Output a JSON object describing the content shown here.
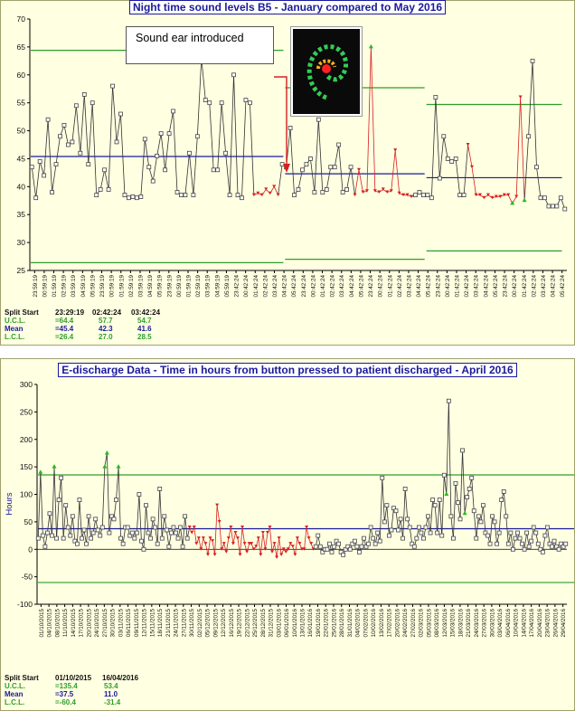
{
  "chart_data": [
    {
      "type": "line",
      "title": "Night time sound levels B5 - January compared to May 2016",
      "ylim": [
        25,
        70
      ],
      "yticks": [
        25,
        30,
        35,
        40,
        45,
        50,
        55,
        60,
        65,
        70
      ],
      "xticklabels": [
        "23:59:19",
        "00:59:19",
        "01:59:19",
        "02:59:19",
        "03:59:19",
        "04:59:19",
        "05:59:19",
        "23:59:19",
        "00:59:19",
        "01:59:19",
        "02:59:19",
        "03:59:19",
        "04:59:19",
        "05:59:19",
        "23:59:19",
        "00:59:19",
        "01:59:19",
        "02:59:19",
        "03:59:19",
        "04:59:19",
        "05:59:19",
        "23:42:24",
        "00:42:24",
        "01:42:24",
        "02:42:24",
        "03:42:24",
        "04:42:24",
        "05:42:24",
        "23:42:24",
        "00:42:24",
        "01:42:24",
        "02:42:24",
        "03:42:24",
        "04:42:24",
        "05:42:24",
        "23:42:24",
        "00:42:24",
        "01:42:24",
        "02:42:24",
        "03:42:24",
        "04:42:24",
        "05:42:24",
        "23:42:24",
        "00:42:24",
        "01:42:24",
        "02:42:24",
        "03:42:24",
        "04:42:24",
        "05:42:24",
        "23:42:24",
        "00:42:24",
        "01:42:24",
        "02:42:24",
        "03:42:24",
        "04:42:24",
        "05:42:24"
      ],
      "values": [
        43.5,
        38,
        44.5,
        42,
        52,
        39,
        44,
        49,
        51,
        47.5,
        48,
        54.5,
        46,
        56.5,
        44,
        55,
        38.5,
        39.5,
        43,
        39.5,
        58,
        48,
        53,
        38.5,
        38,
        38.2,
        38,
        38.2,
        48.5,
        43.5,
        41,
        45.5,
        49.5,
        43,
        49.5,
        53.5,
        39,
        38.5,
        38.5,
        46,
        38.5,
        49,
        63,
        55.5,
        55,
        43,
        43,
        55,
        46,
        38.5,
        60,
        38.5,
        38,
        55.5,
        55,
        38.5,
        38.8,
        38.5,
        39.5,
        38.8,
        40,
        38.5,
        44,
        43.5,
        50.5,
        38.5,
        39.5,
        43,
        44,
        45,
        39,
        52,
        39,
        39.5,
        43.5,
        43.5,
        47.5,
        39,
        39.5,
        43.5,
        38.5,
        43,
        39,
        39.2,
        65,
        39.2,
        39,
        39.5,
        39,
        39.2,
        46.5,
        38.8,
        38.5,
        38.5,
        38.2,
        38.5,
        39,
        38.5,
        38.5,
        38,
        56,
        41.5,
        49,
        45,
        44.5,
        45,
        38.5,
        38.5,
        47.5,
        43.5,
        38.5,
        38.5,
        38,
        38.5,
        38,
        38.2,
        38.2,
        38.5,
        38.5,
        37,
        38.2,
        56,
        37.5,
        49,
        62.5,
        43.5,
        38,
        38,
        36.5,
        36.5,
        36.5,
        38,
        36
      ],
      "red_runs": [
        [
          55,
          61
        ],
        [
          80,
          94
        ],
        [
          108,
          122
        ]
      ],
      "green_points": [
        42,
        84,
        119,
        122
      ],
      "splits": [
        0,
        63,
        98,
        132
      ],
      "limits": [
        {
          "ucl": 64.4,
          "mean": 45.4,
          "lcl": 26.4
        },
        {
          "ucl": 57.7,
          "mean": 42.3,
          "lcl": 27.0
        },
        {
          "ucl": 54.7,
          "mean": 41.6,
          "lcl": 28.5
        }
      ],
      "annotation": "Sound ear introduced"
    },
    {
      "type": "line",
      "title": "E-discharge Data - Time in hours from button pressed to patient discharged - April 2016",
      "ylabel": "Hours",
      "ylim": [
        -100,
        300
      ],
      "yticks": [
        -100,
        -50,
        0,
        50,
        100,
        150,
        200,
        250,
        300
      ],
      "xticklabels": [
        "01/10/2015",
        "04/10/2015",
        "08/10/2015",
        "11/10/2015",
        "14/10/2015",
        "17/10/2015",
        "20/10/2015",
        "24/10/2015",
        "27/10/2015",
        "30/10/2015",
        "03/11/2015",
        "06/11/2015",
        "09/11/2015",
        "12/11/2015",
        "15/11/2015",
        "18/11/2015",
        "21/11/2015",
        "24/11/2015",
        "27/11/2015",
        "30/11/2015",
        "02/12/2015",
        "05/12/2015",
        "09/12/2015",
        "12/12/2015",
        "16/12/2015",
        "19/12/2015",
        "22/12/2015",
        "25/12/2015",
        "28/12/2015",
        "31/12/2015",
        "03/01/2016",
        "06/01/2016",
        "10/01/2016",
        "13/01/2016",
        "16/01/2016",
        "19/01/2016",
        "22/01/2016",
        "25/01/2016",
        "28/01/2016",
        "31/01/2016",
        "04/02/2016",
        "07/02/2016",
        "10/02/2016",
        "13/02/2016",
        "17/02/2016",
        "20/02/2016",
        "24/02/2016",
        "27/02/2016",
        "02/03/2016",
        "05/03/2016",
        "08/03/2016",
        "12/03/2016",
        "15/03/2016",
        "18/03/2016",
        "21/03/2016",
        "24/03/2016",
        "27/03/2016",
        "30/03/2016",
        "03/04/2016",
        "06/04/2016",
        "10/04/2016",
        "14/04/2016",
        "17/04/2016",
        "20/04/2016",
        "23/04/2016",
        "26/04/2016",
        "29/04/2016"
      ],
      "values": [
        20,
        140,
        25,
        5,
        30,
        65,
        25,
        150,
        20,
        90,
        130,
        20,
        80,
        40,
        25,
        60,
        15,
        10,
        90,
        20,
        35,
        10,
        60,
        20,
        30,
        55,
        35,
        25,
        40,
        150,
        175,
        30,
        60,
        55,
        90,
        150,
        20,
        10,
        40,
        40,
        25,
        30,
        20,
        30,
        100,
        15,
        0,
        80,
        30,
        20,
        55,
        40,
        10,
        110,
        20,
        60,
        35,
        5,
        30,
        40,
        30,
        20,
        40,
        5,
        60,
        20,
        40,
        30,
        40,
        10,
        20,
        0,
        20,
        10,
        -10,
        20,
        15,
        -10,
        80,
        50,
        0,
        10,
        -5,
        20,
        40,
        10,
        30,
        20,
        -10,
        40,
        10,
        -5,
        10,
        10,
        0,
        5,
        20,
        -10,
        30,
        0,
        30,
        40,
        -5,
        10,
        -15,
        20,
        -10,
        0,
        -5,
        0,
        10,
        5,
        -10,
        20,
        10,
        0,
        0,
        40,
        20,
        10,
        0,
        5,
        25,
        5,
        -5,
        0,
        0,
        10,
        -5,
        5,
        15,
        10,
        -5,
        -10,
        0,
        5,
        0,
        10,
        15,
        5,
        -5,
        5,
        20,
        5,
        10,
        40,
        20,
        10,
        30,
        15,
        130,
        50,
        80,
        25,
        35,
        75,
        70,
        35,
        55,
        20,
        110,
        55,
        40,
        10,
        5,
        20,
        40,
        30,
        20,
        40,
        60,
        30,
        90,
        80,
        30,
        90,
        25,
        135,
        100,
        270,
        60,
        20,
        120,
        85,
        55,
        180,
        65,
        95,
        110,
        130,
        70,
        20,
        60,
        50,
        80,
        30,
        25,
        10,
        60,
        50,
        10,
        30,
        90,
        105,
        60,
        10,
        30,
        0,
        20,
        30,
        20,
        10,
        0,
        30,
        5,
        15,
        40,
        30,
        10,
        0,
        -5,
        25,
        40,
        10,
        5,
        15,
        5,
        0,
        10,
        5,
        10
      ],
      "red_runs": [
        [
          66,
          71
        ],
        [
          72,
          79
        ],
        [
          80,
          92
        ],
        [
          93,
          101
        ],
        [
          102,
          110
        ],
        [
          111,
          120
        ]
      ],
      "green_points": [
        1,
        7,
        29,
        30,
        35,
        178,
        186
      ],
      "splits": [
        0,
        235,
        245
      ],
      "limits": [
        {
          "ucl": 135.4,
          "mean": 37.5,
          "lcl": -60.4
        },
        {
          "ucl": 53.4,
          "mean": 11.0,
          "lcl": -31.4
        }
      ]
    }
  ],
  "stats1": {
    "split_label": "Split Start",
    "ucl_label": "U.C.L.",
    "mean_label": "Mean",
    "lcl_label": "L.C.L.",
    "cols": [
      {
        "start": "23:29:19",
        "ucl": "=64.4",
        "mean": "=45.4",
        "lcl": "=26.4"
      },
      {
        "start": "02:42:24",
        "ucl": "57.7",
        "mean": "42.3",
        "lcl": "27.0"
      },
      {
        "start": "03:42:24",
        "ucl": "54.7",
        "mean": "41.6",
        "lcl": "28.5"
      }
    ]
  },
  "stats2": {
    "split_label": "Split Start",
    "ucl_label": "U.C.L.",
    "mean_label": "Mean",
    "lcl_label": "L.C.L.",
    "cols": [
      {
        "start": "01/10/2015",
        "ucl": "=135.4",
        "mean": "=37.5",
        "lcl": "=-60.4"
      },
      {
        "start": "16/04/2016",
        "ucl": "53.4",
        "mean": "11.0",
        "lcl": "-31.4"
      }
    ]
  },
  "colors": {
    "ucl": "#2e9e2e",
    "mean": "#1a1a9a",
    "lcl": "#2e9e2e",
    "red": "#d62020",
    "green": "#22bb22",
    "line": "#333333",
    "annotation_arrow": "#d62020",
    "panel_bg": "#ffffe1"
  }
}
